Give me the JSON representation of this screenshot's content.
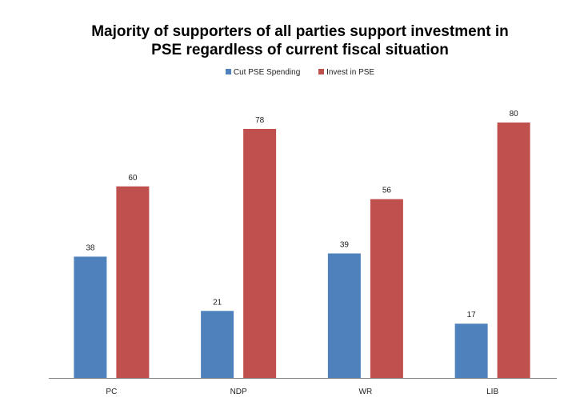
{
  "chart_data": {
    "type": "bar",
    "title": "Majority of supporters of all parties support investment in PSE regardless of current fiscal situation",
    "title_lines": [
      "Majority of supporters of all parties support investment in",
      "PSE regardless of current fiscal situation"
    ],
    "categories": [
      "PC",
      "NDP",
      "WR",
      "LIB"
    ],
    "series": [
      {
        "name": "Cut PSE Spending",
        "values": [
          38,
          21,
          39,
          17
        ],
        "color": "#4F81BD"
      },
      {
        "name": "Invest in PSE",
        "values": [
          60,
          78,
          56,
          80
        ],
        "color": "#C0504D"
      }
    ],
    "legend_position": "top",
    "grid": false,
    "data_labels": true,
    "ylim": [
      0,
      80
    ]
  }
}
